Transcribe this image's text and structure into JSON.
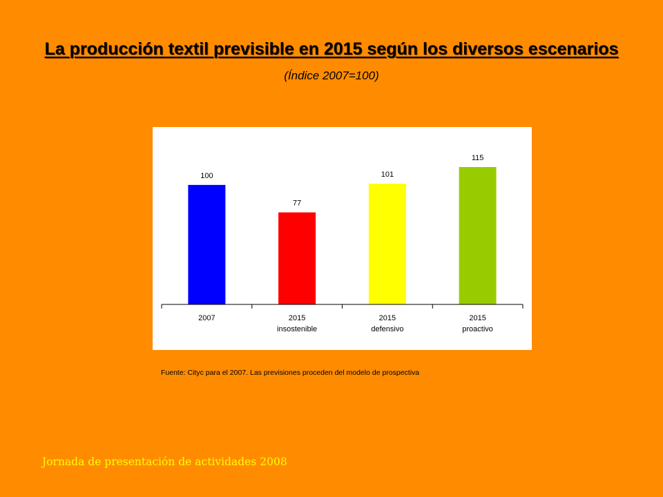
{
  "slide": {
    "title": "La producción textil previsible en 2015 según los diversos escenarios",
    "subtitle": "(Índice 2007=100)",
    "source": "Fuente: Cityc para el 2007. Las previsiones proceden del modelo de prospectiva",
    "footer": "Jornada de presentación de actividades 2008",
    "background_color": "#FF8C00",
    "footer_color": "#FFFF00"
  },
  "chart_data": {
    "type": "bar",
    "categories": [
      [
        "2007"
      ],
      [
        "2015",
        "insostenible"
      ],
      [
        "2015",
        "defensivo"
      ],
      [
        "2015",
        "proactivo"
      ]
    ],
    "values": [
      100,
      77,
      101,
      115
    ],
    "data_labels": [
      "100",
      "77",
      "101",
      "115"
    ],
    "colors": [
      "#0000FF",
      "#FF0000",
      "#FFFF00",
      "#99CC00"
    ],
    "ylim": [
      0,
      130
    ],
    "grid": false,
    "legend": "none",
    "y_axis_visible": false,
    "title": "",
    "xlabel": "",
    "ylabel": ""
  }
}
